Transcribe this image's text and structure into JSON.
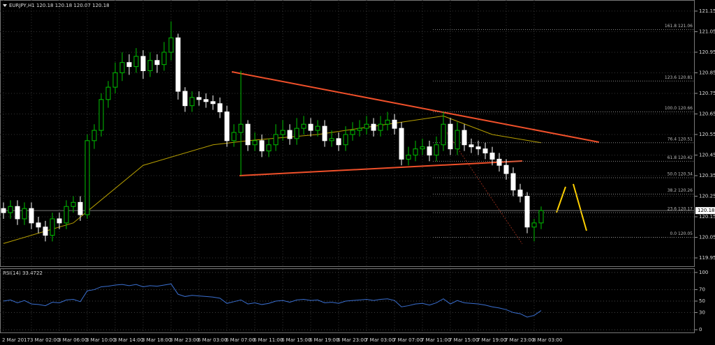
{
  "chart_data": [
    {
      "type": "candlestick",
      "title": "EURJPY,H1  120.18 120.18 120.07 120.18",
      "categories": [
        "2 Mar 2017",
        null,
        null,
        null,
        "3 Mar 02:00",
        null,
        null,
        null,
        "3 Mar 06:00",
        null,
        null,
        null,
        "3 Mar 10:00",
        null,
        null,
        null,
        "3 Mar 14:00",
        null,
        null,
        null,
        "3 Mar 18:00",
        null,
        null,
        null,
        "3 Mar 23:00",
        null,
        null,
        null,
        "6 Mar 03:00",
        null,
        null,
        null,
        "6 Mar 07:00",
        null,
        null,
        null,
        "6 Mar 11:00",
        null,
        null,
        null,
        "6 Mar 15:00",
        null,
        null,
        null,
        "6 Mar 19:00",
        null,
        null,
        null,
        "6 Mar 23:00",
        null,
        null,
        null,
        "7 Mar 03:00",
        null,
        null,
        null,
        "7 Mar 07:00",
        null,
        null,
        null,
        "7 Mar 11:00",
        null,
        null,
        null,
        "7 Mar 15:00",
        null,
        null,
        null,
        "7 Mar 19:00",
        null,
        null,
        null,
        "7 Mar 23:00",
        null,
        null,
        null,
        "8 Mar 03:00",
        null
      ],
      "open": [
        120.19,
        120.17,
        120.2,
        120.14,
        120.19,
        120.12,
        120.1,
        120.06,
        120.14,
        120.12,
        120.2,
        120.22,
        120.16,
        120.52,
        120.57,
        120.72,
        120.78,
        120.85,
        120.9,
        120.88,
        120.93,
        120.86,
        120.91,
        120.89,
        120.95,
        121.02,
        120.76,
        120.69,
        120.73,
        120.72,
        120.71,
        120.7,
        120.66,
        120.52,
        120.56,
        120.6,
        120.5,
        120.52,
        120.47,
        120.5,
        120.55,
        120.57,
        120.53,
        120.58,
        120.6,
        120.57,
        120.59,
        120.52,
        120.53,
        120.5,
        120.55,
        120.57,
        120.58,
        120.6,
        120.57,
        120.6,
        120.62,
        120.58,
        120.43,
        120.45,
        120.48,
        120.49,
        120.45,
        120.5,
        120.6,
        120.48,
        120.57,
        120.5,
        120.49,
        120.48,
        120.46,
        120.43,
        120.4,
        120.36,
        120.28,
        120.25,
        120.1,
        120.12
      ],
      "high": [
        120.22,
        120.23,
        120.23,
        120.22,
        120.22,
        120.15,
        120.13,
        120.17,
        120.17,
        120.23,
        120.25,
        120.25,
        120.55,
        120.6,
        120.75,
        120.81,
        120.9,
        120.95,
        120.94,
        120.97,
        120.96,
        120.95,
        120.94,
        121.0,
        121.1,
        121.04,
        120.78,
        120.76,
        120.76,
        120.75,
        120.74,
        120.73,
        120.69,
        120.6,
        120.86,
        120.62,
        120.56,
        120.55,
        120.53,
        120.6,
        120.62,
        120.6,
        120.63,
        120.64,
        120.63,
        120.62,
        120.62,
        120.57,
        120.56,
        120.59,
        120.61,
        120.62,
        120.64,
        120.63,
        120.64,
        120.66,
        120.65,
        120.61,
        120.49,
        120.52,
        120.53,
        120.52,
        120.54,
        120.66,
        120.63,
        120.61,
        120.6,
        120.53,
        120.52,
        120.51,
        120.49,
        120.46,
        120.43,
        120.39,
        120.31,
        120.27,
        120.14,
        120.2
      ],
      "low": [
        120.14,
        120.14,
        120.11,
        120.11,
        120.09,
        120.07,
        120.03,
        120.03,
        120.09,
        120.09,
        120.17,
        120.13,
        120.14,
        120.48,
        120.54,
        120.68,
        120.75,
        120.81,
        120.84,
        120.85,
        120.82,
        120.83,
        120.85,
        120.86,
        120.91,
        120.72,
        120.66,
        120.66,
        120.69,
        120.68,
        120.67,
        120.63,
        120.49,
        120.49,
        120.35,
        120.47,
        120.47,
        120.44,
        120.44,
        120.47,
        120.52,
        120.5,
        120.5,
        120.55,
        120.54,
        120.54,
        120.49,
        120.49,
        120.47,
        120.47,
        120.52,
        120.54,
        120.55,
        120.54,
        120.54,
        120.57,
        120.55,
        120.4,
        120.4,
        120.42,
        120.45,
        120.42,
        120.42,
        120.47,
        120.45,
        120.45,
        120.47,
        120.46,
        120.45,
        120.43,
        120.4,
        120.37,
        120.33,
        120.25,
        120.22,
        120.07,
        120.03,
        120.09
      ],
      "close": [
        120.17,
        120.2,
        120.14,
        120.19,
        120.12,
        120.1,
        120.06,
        120.14,
        120.12,
        120.2,
        120.22,
        120.16,
        120.52,
        120.57,
        120.72,
        120.78,
        120.85,
        120.9,
        120.88,
        120.93,
        120.86,
        120.91,
        120.89,
        120.95,
        121.02,
        120.76,
        120.69,
        120.73,
        120.72,
        120.71,
        120.7,
        120.66,
        120.52,
        120.56,
        120.6,
        120.5,
        120.52,
        120.47,
        120.5,
        120.55,
        120.57,
        120.53,
        120.58,
        120.6,
        120.57,
        120.59,
        120.52,
        120.53,
        120.5,
        120.55,
        120.57,
        120.58,
        120.6,
        120.57,
        120.6,
        120.62,
        120.58,
        120.43,
        120.45,
        120.48,
        120.49,
        120.45,
        120.5,
        120.6,
        120.48,
        120.57,
        120.5,
        120.49,
        120.48,
        120.46,
        120.43,
        120.4,
        120.36,
        120.28,
        120.25,
        120.1,
        120.12,
        120.18
      ],
      "ma": {
        "color": "#b8a000",
        "x": [
          0,
          10,
          20,
          30,
          35,
          45,
          55,
          63,
          70,
          77
        ],
        "values": [
          120.02,
          120.12,
          120.4,
          120.5,
          120.52,
          120.55,
          120.6,
          120.64,
          120.55,
          120.51
        ]
      },
      "fib_levels": [
        {
          "value": 121.06,
          "label": "161.8 121.06"
        },
        {
          "value": 120.81,
          "label": "123.6 120.81"
        },
        {
          "value": 120.66,
          "label": "100.0 120.66"
        },
        {
          "value": 120.51,
          "label": "76.4 120.51"
        },
        {
          "value": 120.42,
          "label": "61.8 120.42"
        },
        {
          "value": 120.34,
          "label": "50.0 120.34"
        },
        {
          "value": 120.26,
          "label": "38.2 120.26"
        },
        {
          "value": 120.17,
          "label": "23.6 120.17"
        },
        {
          "value": 120.05,
          "label": "0.0 120.05"
        }
      ],
      "bid": 120.18,
      "ylim": [
        119.906,
        121.204
      ],
      "yticks": [
        119.95,
        120.05,
        120.15,
        120.25,
        120.35,
        120.45,
        120.55,
        120.65,
        120.75,
        120.85,
        120.95,
        121.05,
        121.15
      ],
      "grid": true
    },
    {
      "type": "line",
      "title": "RSI(14) 33.4722",
      "color": "#3a6fd0",
      "values": [
        50,
        52,
        47,
        51,
        45,
        44,
        42,
        48,
        47,
        52,
        53,
        49,
        68,
        70,
        75,
        76,
        78,
        79,
        77,
        79,
        75,
        77,
        76,
        78,
        80,
        62,
        58,
        60,
        59,
        58,
        57,
        55,
        46,
        49,
        52,
        45,
        47,
        44,
        46,
        50,
        51,
        48,
        52,
        53,
        51,
        52,
        47,
        48,
        46,
        50,
        51,
        52,
        53,
        51,
        53,
        54,
        51,
        40,
        42,
        45,
        46,
        43,
        47,
        54,
        45,
        51,
        47,
        46,
        45,
        43,
        40,
        38,
        35,
        30,
        28,
        22,
        25,
        33.4722
      ],
      "ylim": [
        -6,
        106
      ],
      "yticks": [
        0,
        30,
        50,
        70,
        100
      ],
      "grid": true
    }
  ]
}
